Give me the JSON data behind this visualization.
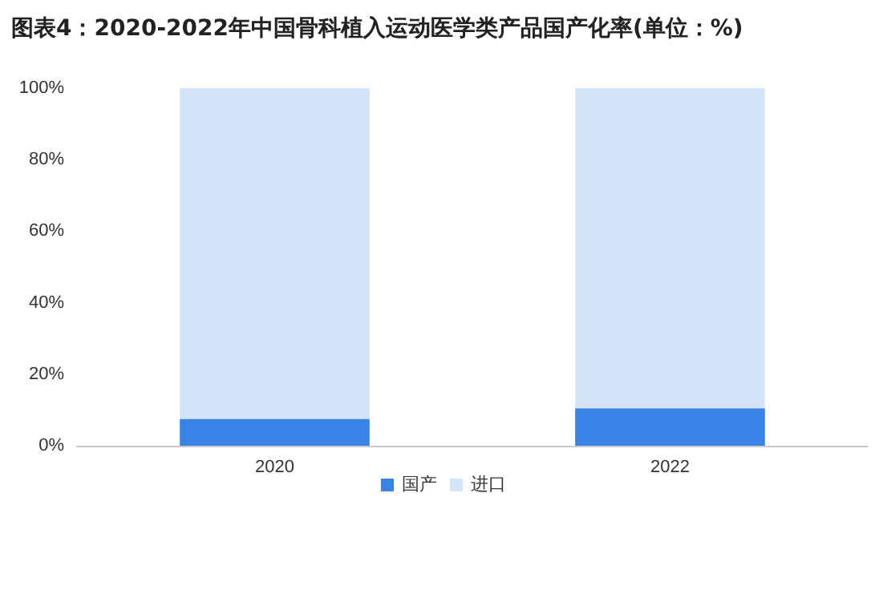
{
  "chart_data": {
    "type": "bar",
    "title": "图表4：2020-2022年中国骨科植入运动医学类产品国产化率(单位：%)",
    "categories": [
      "2020",
      "2022"
    ],
    "stacked": true,
    "series": [
      {
        "name": "国产",
        "color": "#3a83e6",
        "values": [
          7.5,
          10.5
        ]
      },
      {
        "name": "进口",
        "color": "#d3e3f8",
        "values": [
          92.5,
          89.5
        ]
      }
    ],
    "ylim": [
      0,
      100
    ],
    "yticks": [
      {
        "value": 0,
        "label": "0%"
      },
      {
        "value": 20,
        "label": "20%"
      },
      {
        "value": 40,
        "label": "40%"
      },
      {
        "value": 60,
        "label": "60%"
      },
      {
        "value": 80,
        "label": "80%"
      },
      {
        "value": 100,
        "label": "100%"
      }
    ],
    "grid": false,
    "legend": "bottom"
  }
}
